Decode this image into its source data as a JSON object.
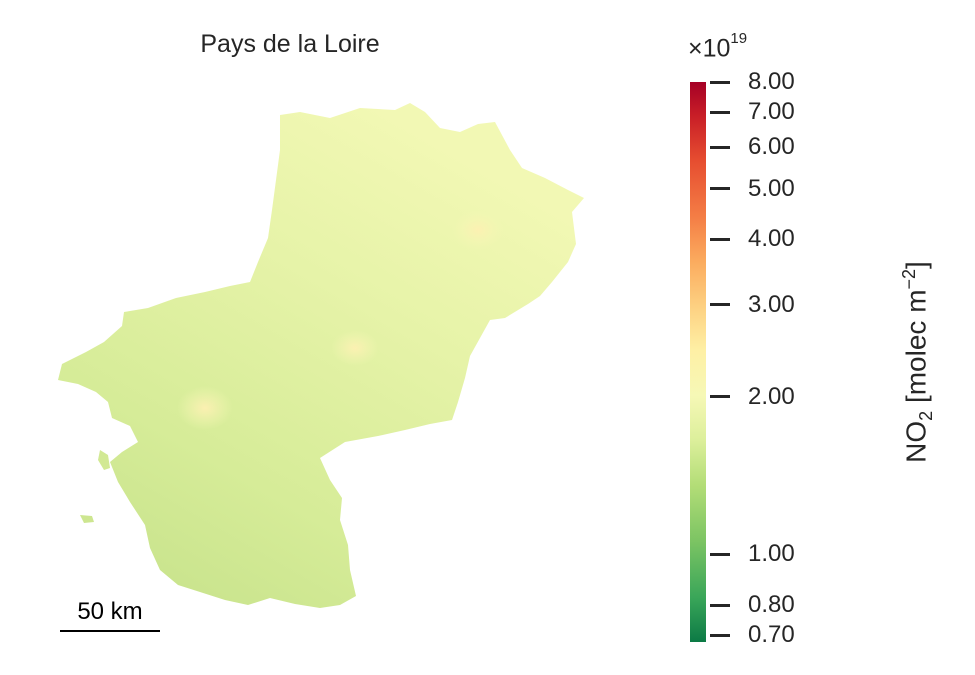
{
  "title": "Pays de la Loire",
  "scale_bar": {
    "label": "50 km"
  },
  "colorbar": {
    "multiplier": "×10",
    "exponent": "19",
    "label_main": "NO",
    "label_sub": "2",
    "label_unit": " [molec m",
    "label_sup": "−2",
    "label_end": "]",
    "scale": "log",
    "range": [
      0.68,
      8.0
    ],
    "colormap_colors": [
      "#0c7a45",
      "#7cc463",
      "#f6f8b6",
      "#fdd081",
      "#e64d30",
      "#a50026"
    ],
    "ticks": [
      {
        "value": 8.0,
        "label": "8.00"
      },
      {
        "value": 7.0,
        "label": "7.00"
      },
      {
        "value": 6.0,
        "label": "6.00"
      },
      {
        "value": 5.0,
        "label": "5.00"
      },
      {
        "value": 4.0,
        "label": "4.00"
      },
      {
        "value": 3.0,
        "label": "3.00"
      },
      {
        "value": 2.0,
        "label": "2.00"
      },
      {
        "value": 1.0,
        "label": "1.00"
      },
      {
        "value": 0.8,
        "label": "0.80"
      },
      {
        "value": 0.7,
        "label": "0.70"
      }
    ]
  },
  "region_fill": {
    "base_color": "#d9ee9c",
    "light_color": "#f6f9b9",
    "hotspot_color": "#fdf0b0",
    "south_color": "#c8e48c"
  }
}
